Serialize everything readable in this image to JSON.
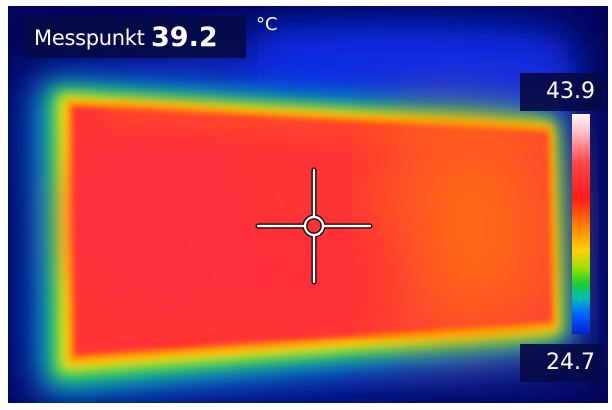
{
  "measurement_spot": {
    "label": "Messpunkt",
    "value": "39.2",
    "unit": "°C"
  },
  "temperature_scale": {
    "max": "43.9",
    "min": "24.7"
  },
  "icons": {
    "crosshair": "crosshair-icon"
  },
  "colors": {
    "background": "#04065a",
    "overlay": "#060a46",
    "hot": "#ff2a2a",
    "warm": "#ffd200",
    "mid": "#1bcf30",
    "cool": "#0063ff"
  }
}
